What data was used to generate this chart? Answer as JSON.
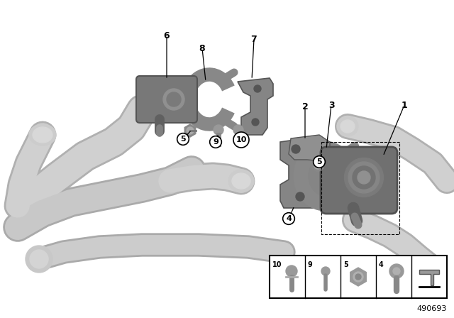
{
  "part_number": "490693",
  "bg_color": "#ffffff",
  "pipe_color": "#c8c8c8",
  "pipe_edge": "#a0a0a0",
  "part_color": "#888888",
  "part_dark": "#666666",
  "part_light": "#aaaaaa",
  "figsize": [
    6.4,
    4.48
  ],
  "dpi": 100
}
